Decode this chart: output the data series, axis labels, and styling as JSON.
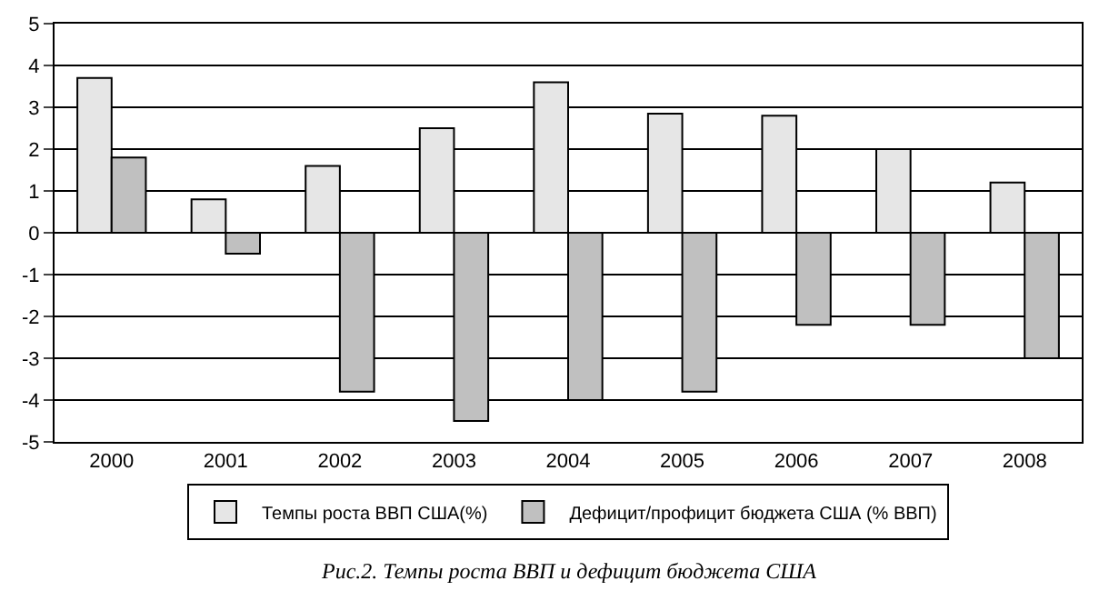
{
  "chart_data": {
    "type": "bar",
    "categories": [
      "2000",
      "2001",
      "2002",
      "2003",
      "2004",
      "2005",
      "2006",
      "2007",
      "2008"
    ],
    "series": [
      {
        "name": "Темпы роста ВВП США(%)",
        "color": "#e6e6e6",
        "values": [
          3.7,
          0.8,
          1.6,
          2.5,
          3.6,
          2.85,
          2.8,
          2.0,
          1.2
        ]
      },
      {
        "name": "Дефицит/профицит бюджета США (% ВВП)",
        "color": "#c0c0c0",
        "values": [
          1.8,
          -0.5,
          -3.8,
          -4.5,
          -4.0,
          -3.8,
          -2.2,
          -2.2,
          -3.0
        ]
      }
    ],
    "ylim": [
      -5,
      5
    ],
    "yticks": [
      -5,
      -4,
      -3,
      -2,
      -1,
      0,
      1,
      2,
      3,
      4,
      5
    ],
    "grid": "y",
    "legend": "bottom",
    "annotations": [
      "Рис.2. Темпы роста ВВП и дефицит бюджета США"
    ]
  }
}
